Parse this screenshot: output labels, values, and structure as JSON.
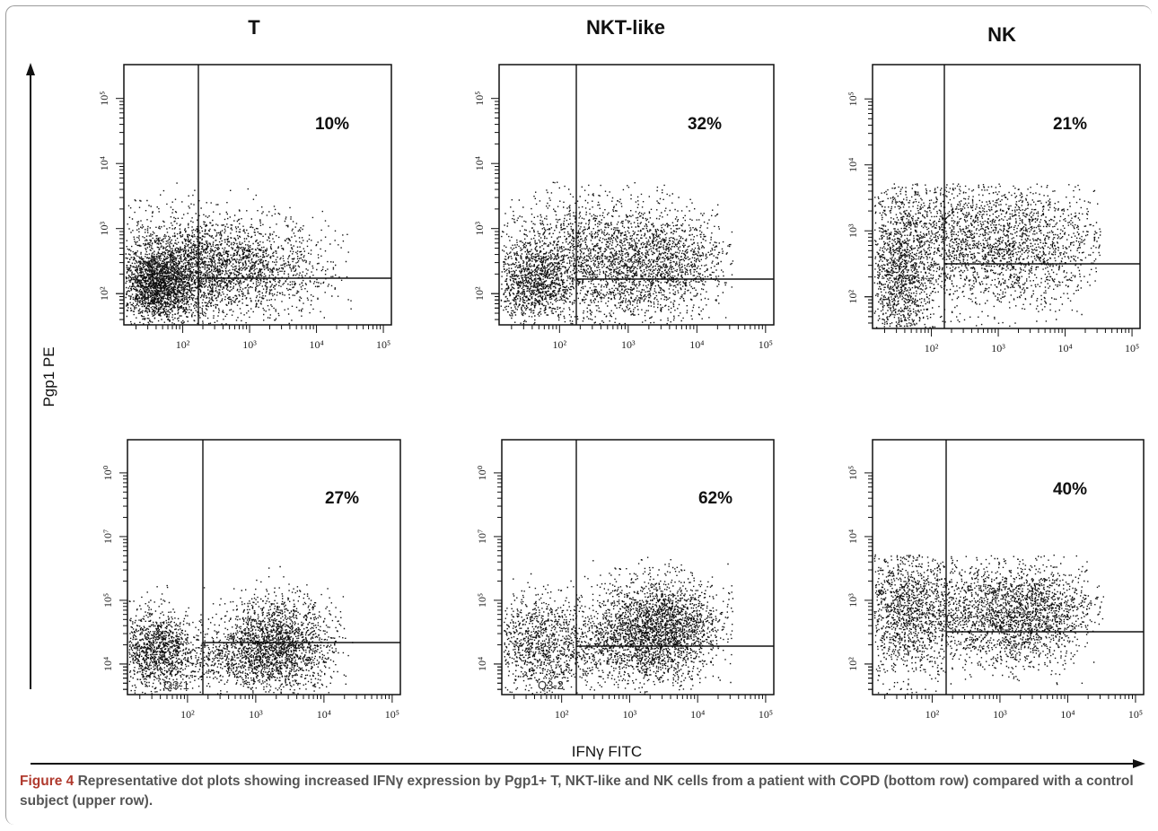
{
  "chart_data": {
    "type": "scatter",
    "description_type": "flow-cytometry-dot-plot-grid",
    "columns": [
      "T",
      "NKT-like",
      "NK"
    ],
    "xlabel": "IFNγ FITC",
    "ylabel": "Pgp1 PE",
    "x_ticks": [
      "10²",
      "10³",
      "10⁴",
      "10⁵"
    ],
    "y_ticks_top": [
      "10²",
      "10³",
      "10⁴",
      "10⁵"
    ],
    "y_ticks_bottom": [
      "10⁴",
      "10⁵",
      "10⁷",
      "10⁰"
    ],
    "y_ticks_bottom_nk": [
      "10²",
      "10³",
      "10⁴",
      "10⁵"
    ],
    "panels": [
      {
        "row": "control",
        "cell": "T",
        "upper_right_percent": "10%",
        "quadrant_label": ""
      },
      {
        "row": "control",
        "cell": "NKT-like",
        "upper_right_percent": "32%",
        "quadrant_label": ""
      },
      {
        "row": "control",
        "cell": "NK",
        "upper_right_percent": "21%",
        "quadrant_label": ""
      },
      {
        "row": "COPD",
        "cell": "T",
        "upper_right_percent": "27%",
        "quadrant_label": "Q3-1"
      },
      {
        "row": "COPD",
        "cell": "NKT-like",
        "upper_right_percent": "62%",
        "quadrant_label": "Q3-2"
      },
      {
        "row": "COPD",
        "cell": "NK",
        "upper_right_percent": "40%",
        "quadrant_label": ""
      }
    ]
  },
  "caption": {
    "label": "Figure 4",
    "text": " Representative dot plots showing increased IFNγ expression by Pgp1+ T, NKT-like and NK cells from a patient with COPD (bottom row) compared with a control subject (upper row)."
  }
}
